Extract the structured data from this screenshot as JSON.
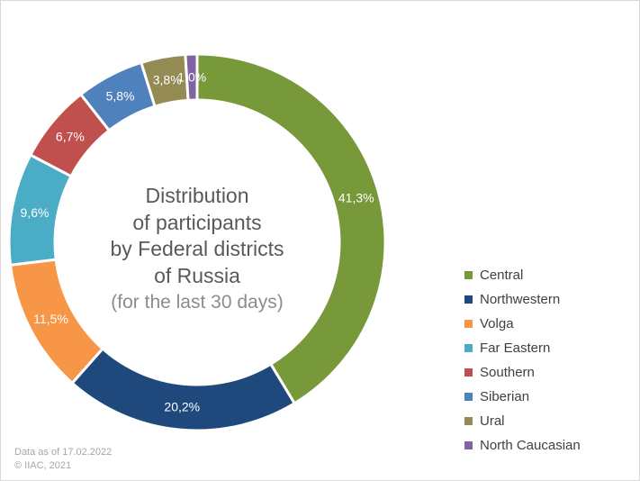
{
  "chart_data": {
    "type": "pie",
    "variant": "donut",
    "title_lines": [
      "Distribution",
      "of participants",
      "by Federal districts",
      "of Russia"
    ],
    "subtitle": "(for the last 30 days)",
    "unit": "%",
    "slices": [
      {
        "name": "Central",
        "value": 41.3,
        "label": "41,3%",
        "color": "#77993a"
      },
      {
        "name": "Northwestern",
        "value": 20.2,
        "label": "20,2%",
        "color": "#1f497d"
      },
      {
        "name": "Volga",
        "value": 11.5,
        "label": "11,5%",
        "color": "#f79646"
      },
      {
        "name": "Far Eastern",
        "value": 9.6,
        "label": "9,6%",
        "color": "#4bacc6"
      },
      {
        "name": "Southern",
        "value": 6.7,
        "label": "6,7%",
        "color": "#c0504d"
      },
      {
        "name": "Siberian",
        "value": 5.8,
        "label": "5,8%",
        "color": "#4f81bd"
      },
      {
        "name": "Ural",
        "value": 3.8,
        "label": "3,8%",
        "color": "#948a54"
      },
      {
        "name": "North Caucasian",
        "value": 1.0,
        "label": "1,0%",
        "color": "#8064a2"
      }
    ],
    "legend_position": "right"
  },
  "footer": {
    "date_note": "Data as of 17.02.2022",
    "copyright": "© IIAC, 2021"
  }
}
